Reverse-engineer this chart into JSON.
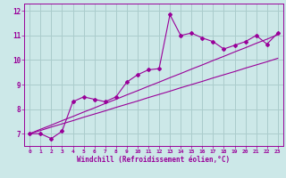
{
  "xlabel": "Windchill (Refroidissement éolien,°C)",
  "x_values": [
    0,
    1,
    2,
    3,
    4,
    5,
    6,
    7,
    8,
    9,
    10,
    11,
    12,
    13,
    14,
    15,
    16,
    17,
    18,
    19,
    20,
    21,
    22,
    23
  ],
  "y_main": [
    7.0,
    7.0,
    6.8,
    7.1,
    8.3,
    8.5,
    8.4,
    8.3,
    8.5,
    9.1,
    9.4,
    9.6,
    9.65,
    11.85,
    11.0,
    11.1,
    10.9,
    10.75,
    10.45,
    10.6,
    10.75,
    11.0,
    10.65,
    11.1
  ],
  "y_linear1": [
    7.0,
    7.13,
    7.27,
    7.4,
    7.53,
    7.67,
    7.8,
    7.93,
    8.07,
    8.2,
    8.33,
    8.47,
    8.6,
    8.73,
    8.87,
    9.0,
    9.13,
    9.27,
    9.4,
    9.53,
    9.67,
    9.8,
    9.93,
    10.07
  ],
  "y_linear2": [
    7.0,
    7.18,
    7.35,
    7.53,
    7.7,
    7.88,
    8.05,
    8.23,
    8.4,
    8.58,
    8.75,
    8.93,
    9.1,
    9.28,
    9.45,
    9.63,
    9.8,
    9.98,
    10.15,
    10.33,
    10.5,
    10.68,
    10.85,
    11.03
  ],
  "line_color": "#990099",
  "bg_color": "#cce8e8",
  "grid_color": "#aacccc",
  "ylim": [
    6.5,
    12.3
  ],
  "xlim": [
    -0.5,
    23.5
  ],
  "yticks": [
    7,
    8,
    9,
    10,
    11,
    12
  ],
  "xticks": [
    0,
    1,
    2,
    3,
    4,
    5,
    6,
    7,
    8,
    9,
    10,
    11,
    12,
    13,
    14,
    15,
    16,
    17,
    18,
    19,
    20,
    21,
    22,
    23
  ],
  "xtick_labels": [
    "0",
    "1",
    "2",
    "3",
    "4",
    "5",
    "6",
    "7",
    "8",
    "9",
    "10",
    "11",
    "12",
    "13",
    "14",
    "15",
    "16",
    "17",
    "18",
    "19",
    "20",
    "21",
    "22",
    "23"
  ]
}
